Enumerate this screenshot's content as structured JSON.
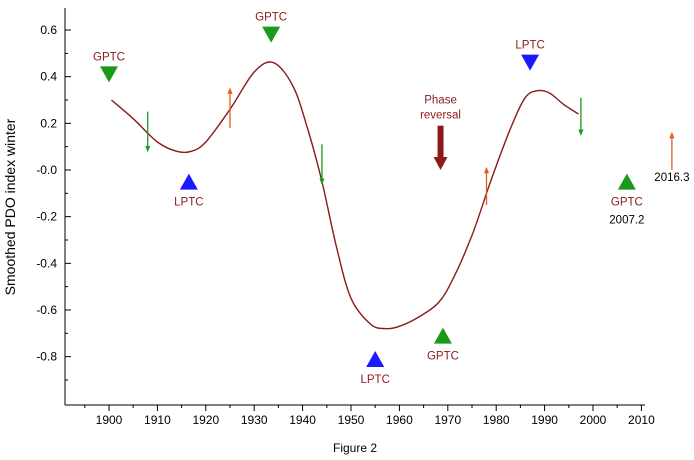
{
  "chart_data": {
    "type": "line",
    "title": "",
    "caption": "Figure 2",
    "xlabel": "",
    "ylabel": "Smoothed PDO index winter",
    "xlim": [
      1890,
      2010
    ],
    "ylim": [
      -1.0,
      0.7
    ],
    "xticks": [
      1900,
      1910,
      1920,
      1930,
      1940,
      1950,
      1960,
      1970,
      1980,
      1990,
      2000,
      2010
    ],
    "yticks": [
      0.6,
      0.4,
      0.2,
      -0.0,
      -0.2,
      -0.4,
      -0.6,
      -0.8
    ],
    "ytick_labels": [
      "0.6",
      "0.4",
      "0.2",
      "-0.0",
      "-0.2",
      "-0.4",
      "-0.6",
      "-0.8"
    ],
    "grid": false,
    "colors": {
      "curve": "#8b1a1a",
      "gptc": "#1a9a1a",
      "lptc": "#1a1aff",
      "phase": "#8b1a1a",
      "green_arrow": "#1a9a1a",
      "orange_arrow": "#e06020"
    },
    "series": [
      {
        "values": [
          [
            1900.5,
            0.3
          ],
          [
            1905,
            0.22
          ],
          [
            1910,
            0.12
          ],
          [
            1914,
            0.08
          ],
          [
            1917,
            0.08
          ],
          [
            1920,
            0.12
          ],
          [
            1925,
            0.26
          ],
          [
            1930,
            0.42
          ],
          [
            1934,
            0.46
          ],
          [
            1938,
            0.36
          ],
          [
            1941,
            0.18
          ],
          [
            1944,
            -0.05
          ],
          [
            1947,
            -0.33
          ],
          [
            1950,
            -0.55
          ],
          [
            1954,
            -0.66
          ],
          [
            1957,
            -0.68
          ],
          [
            1960,
            -0.67
          ],
          [
            1964,
            -0.63
          ],
          [
            1968,
            -0.57
          ],
          [
            1971,
            -0.47
          ],
          [
            1975,
            -0.28
          ],
          [
            1979,
            -0.04
          ],
          [
            1983,
            0.18
          ],
          [
            1986,
            0.31
          ],
          [
            1988.5,
            0.34
          ],
          [
            1991,
            0.33
          ],
          [
            1994,
            0.28
          ],
          [
            1997,
            0.24
          ]
        ]
      }
    ],
    "annotations": [
      {
        "type": "GPTC",
        "label": "GPTC",
        "x": 1900,
        "y": 0.41,
        "direction": "down",
        "label_pos": "above"
      },
      {
        "type": "LPTC",
        "label": "LPTC",
        "x": 1916.5,
        "y": -0.05,
        "direction": "up",
        "label_pos": "below"
      },
      {
        "type": "GPTC",
        "label": "GPTC",
        "x": 1933.5,
        "y": 0.58,
        "direction": "down",
        "label_pos": "above"
      },
      {
        "type": "LPTC",
        "label": "LPTC",
        "x": 1955,
        "y": -0.81,
        "direction": "up",
        "label_pos": "below"
      },
      {
        "type": "GPTC",
        "label": "GPTC",
        "x": 1969,
        "y": -0.71,
        "direction": "up",
        "label_pos": "below"
      },
      {
        "type": "LPTC",
        "label": "LPTC",
        "x": 1987,
        "y": 0.46,
        "direction": "down",
        "label_pos": "above"
      },
      {
        "type": "GPTC",
        "label": "GPTC",
        "x": 2007,
        "y": -0.05,
        "direction": "up",
        "label_pos": "below",
        "sublabel": "2007.2"
      }
    ],
    "phase_reversal": {
      "label_line1": "Phase",
      "label_line2": "reversal",
      "x": 1968.5,
      "y_top": 0.19,
      "y_bottom": 0.0
    },
    "arrows": [
      {
        "color": "green",
        "x": 1908,
        "y_from": 0.25,
        "y_to": 0.09
      },
      {
        "color": "orange",
        "x": 1925,
        "y_from": 0.18,
        "y_to": 0.34
      },
      {
        "color": "green",
        "x": 1944,
        "y_from": 0.11,
        "y_to": -0.05
      },
      {
        "color": "orange",
        "x": 1978,
        "y_from": -0.15,
        "y_to": 0.0
      },
      {
        "color": "green",
        "x": 1997.5,
        "y_from": 0.31,
        "y_to": 0.16
      },
      {
        "color": "orange",
        "x": 2016.3,
        "y_from": 0.0,
        "y_to": 0.15,
        "label": "2016.3"
      }
    ]
  }
}
